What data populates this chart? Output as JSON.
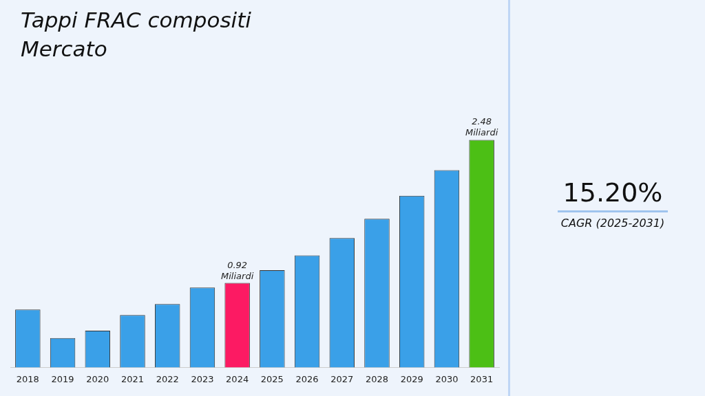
{
  "chart_data": {
    "type": "bar",
    "title": "Tappi FRAC compositi Mercato",
    "categories": [
      "2018",
      "2019",
      "2020",
      "2021",
      "2022",
      "2023",
      "2024",
      "2025",
      "2026",
      "2027",
      "2028",
      "2029",
      "2030",
      "2031"
    ],
    "values": [
      0.63,
      0.32,
      0.4,
      0.57,
      0.69,
      0.87,
      0.92,
      1.06,
      1.22,
      1.41,
      1.62,
      1.87,
      2.15,
      2.48
    ],
    "colors": [
      "#3aa0e8",
      "#3aa0e8",
      "#3aa0e8",
      "#3aa0e8",
      "#3aa0e8",
      "#3aa0e8",
      "#fc1a63",
      "#3aa0e8",
      "#3aa0e8",
      "#3aa0e8",
      "#3aa0e8",
      "#3aa0e8",
      "#3aa0e8",
      "#4cbf15"
    ],
    "value_labels": [
      null,
      null,
      null,
      null,
      null,
      null,
      "0.92 Miliardi",
      null,
      null,
      null,
      null,
      null,
      null,
      "2.48 Miliardi"
    ],
    "grid": false,
    "legend": false,
    "annotations": [
      "15.20%",
      "CAGR (2025-2031)"
    ]
  }
}
